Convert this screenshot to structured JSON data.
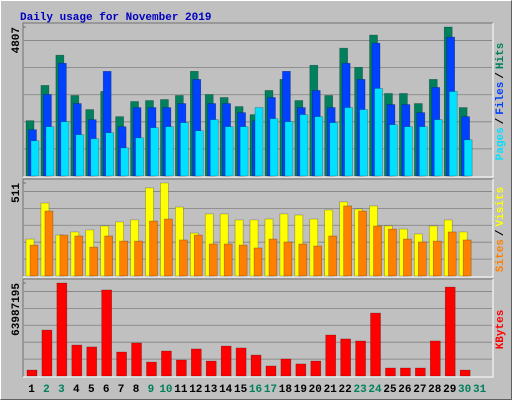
{
  "chart_data": [
    {
      "type": "bar",
      "title": "Daily usage for November 2019",
      "ylim": [
        0,
        4807
      ],
      "yticks": [
        4807
      ],
      "legend_separator": "/",
      "series": [
        {
          "name": "Hits",
          "color": "#00805c",
          "values": [
            1786,
            2923,
            3898,
            2598,
            2144,
            2728,
            1916,
            2404,
            2436,
            2468,
            2598,
            3378,
            2631,
            2533,
            2241,
            1981,
            2761,
            3118,
            2436,
            3573,
            2598,
            4125,
            3508,
            4547,
            2663,
            2663,
            2339,
            3118,
            4807,
            2209,
            null
          ]
        },
        {
          "name": "Files",
          "color": "#0040ff",
          "values": [
            1494,
            2631,
            3638,
            2339,
            1819,
            3378,
            1592,
            2209,
            2209,
            2209,
            2339,
            3118,
            2339,
            2339,
            2046,
            1786,
            2533,
            3378,
            2209,
            2761,
            2209,
            3638,
            3118,
            4287,
            2306,
            2306,
            2046,
            2858,
            4482,
            1916,
            null
          ]
        },
        {
          "name": "Pages",
          "color": "#00e0ff",
          "values": [
            1137,
            1592,
            1754,
            1332,
            1202,
            1397,
            909,
            1234,
            1559,
            1592,
            1721,
            1462,
            1819,
            1592,
            1592,
            2209,
            1851,
            1754,
            1981,
            1916,
            1721,
            2209,
            2144,
            2826,
            1656,
            1592,
            1592,
            1819,
            2728,
            1169,
            null
          ]
        }
      ]
    },
    {
      "type": "bar",
      "ylim": [
        0,
        511
      ],
      "yticks": [
        511
      ],
      "legend_separator": "/",
      "series": [
        {
          "name": "Visits",
          "color": "#ffff00",
          "values": [
            203,
            401,
            225,
            242,
            253,
            275,
            297,
            308,
            484,
            511,
            379,
            236,
            341,
            341,
            308,
            308,
            313,
            341,
            335,
            313,
            363,
            407,
            368,
            385,
            275,
            258,
            231,
            275,
            308,
            242,
            null
          ]
        },
        {
          "name": "Sites",
          "color": "#ff8000",
          "values": [
            170,
            357,
            225,
            220,
            159,
            220,
            192,
            192,
            302,
            313,
            198,
            225,
            176,
            176,
            170,
            154,
            203,
            187,
            176,
            165,
            220,
            385,
            357,
            275,
            258,
            203,
            187,
            192,
            242,
            198,
            null
          ]
        }
      ]
    },
    {
      "type": "bar",
      "ylim": [
        0,
        63987195
      ],
      "yticks": [
        63987195
      ],
      "categories": [
        "1",
        "2",
        "3",
        "4",
        "5",
        "6",
        "7",
        "8",
        "9",
        "10",
        "11",
        "12",
        "13",
        "14",
        "15",
        "16",
        "17",
        "18",
        "19",
        "20",
        "21",
        "22",
        "23",
        "24",
        "25",
        "26",
        "27",
        "28",
        "29",
        "30",
        "31"
      ],
      "category_colors": [
        "#000000",
        "#00805c",
        "#00805c",
        "#000000",
        "#000000",
        "#000000",
        "#000000",
        "#000000",
        "#00805c",
        "#00805c",
        "#000000",
        "#000000",
        "#000000",
        "#000000",
        "#000000",
        "#00805c",
        "#00805c",
        "#000000",
        "#000000",
        "#000000",
        "#000000",
        "#000000",
        "#00805c",
        "#00805c",
        "#000000",
        "#000000",
        "#000000",
        "#000000",
        "#000000",
        "#00805c",
        "#00805c"
      ],
      "series": [
        {
          "name": "KBytes",
          "color": "#ff0000",
          "values": [
            4100000,
            31600000,
            63987195,
            21300000,
            20000000,
            59200000,
            16500000,
            22700000,
            9600000,
            17200000,
            11000000,
            18600000,
            10300000,
            20600000,
            19300000,
            14400000,
            6900000,
            11700000,
            8300000,
            10300000,
            28200000,
            25500000,
            24100000,
            43300000,
            5500000,
            5500000,
            5500000,
            24100000,
            61200000,
            4100000,
            null
          ]
        }
      ]
    }
  ]
}
